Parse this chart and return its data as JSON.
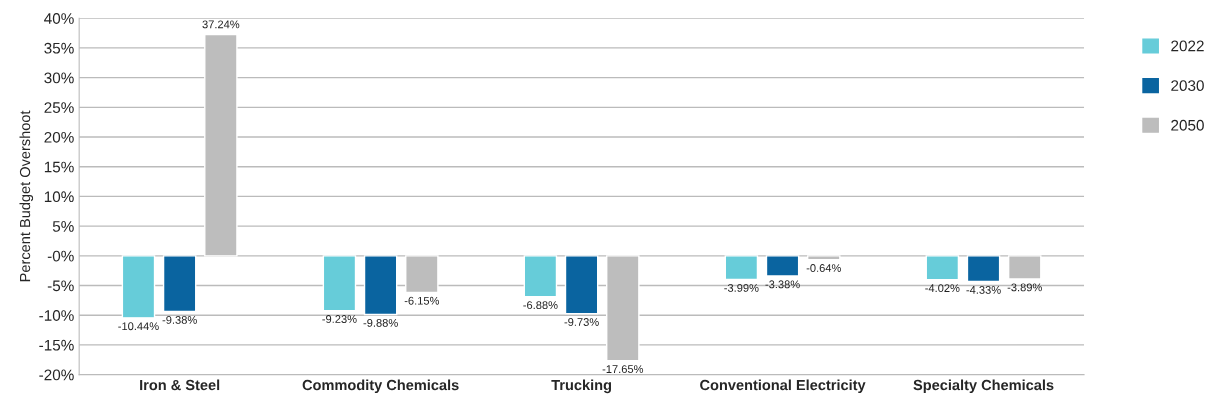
{
  "chart_data": {
    "type": "bar",
    "ylabel": "Percent Budget Overshoot",
    "categories": [
      "Iron & Steel",
      "Commodity Chemicals",
      "Trucking",
      "Conventional Electricity",
      "Specialty Chemicals"
    ],
    "series": [
      {
        "name": "2022",
        "color": "#66ccd9",
        "values": [
          -10.44,
          -9.23,
          -6.88,
          -3.99,
          -4.02
        ],
        "value_labels": [
          "-10.44%",
          "-9.23%",
          "-6.88%",
          "-3.99%",
          "-4.02%"
        ]
      },
      {
        "name": "2030",
        "color": "#0a64a0",
        "values": [
          -9.38,
          -9.88,
          -9.73,
          -3.38,
          -4.33
        ],
        "value_labels": [
          "-9.38%",
          "-9.88%",
          "-9.73%",
          "-3.38%",
          "-4.33%"
        ]
      },
      {
        "name": "2050",
        "color": "#bdbdbd",
        "values": [
          37.24,
          -6.15,
          -17.65,
          -0.64,
          -3.89
        ],
        "value_labels": [
          "37.24%",
          "-6.15%",
          "-17.65%",
          "-0.64%",
          "-3.89%"
        ]
      }
    ],
    "ylim": [
      -20,
      40
    ],
    "yticks": [
      {
        "value": -20,
        "label": "-20%"
      },
      {
        "value": -15,
        "label": "-15%"
      },
      {
        "value": -10,
        "label": "-10%"
      },
      {
        "value": -5,
        "label": "-5%"
      },
      {
        "value": 0,
        "label": "-0%"
      },
      {
        "value": 5,
        "label": "5%"
      },
      {
        "value": 10,
        "label": "10%"
      },
      {
        "value": 15,
        "label": "15%"
      },
      {
        "value": 20,
        "label": "20%"
      },
      {
        "value": 25,
        "label": "25%"
      },
      {
        "value": 30,
        "label": "30%"
      },
      {
        "value": 35,
        "label": "35%"
      },
      {
        "value": 40,
        "label": "40%"
      }
    ],
    "grid": "y",
    "legend": "right"
  }
}
